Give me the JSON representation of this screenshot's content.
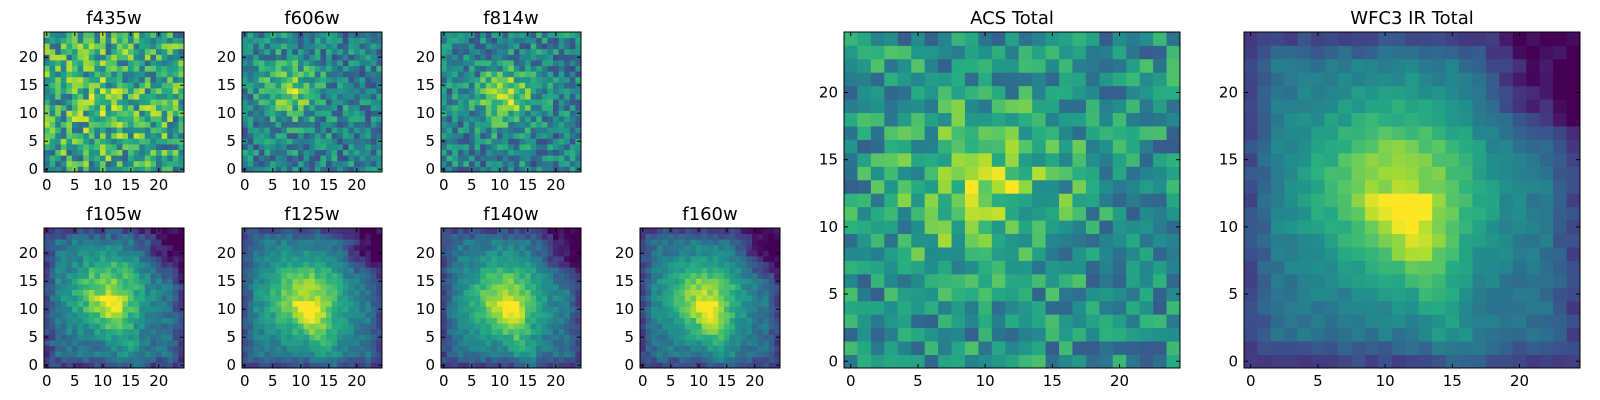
{
  "chart_data": [
    {
      "type": "heatmap",
      "title": "f435w",
      "grid_size": 25,
      "colormap": "viridis",
      "xticks": [
        "0",
        "5",
        "10",
        "15",
        "20"
      ],
      "yticks": [
        "0",
        "5",
        "10",
        "15",
        "20"
      ],
      "xlim": [
        -0.5,
        24.5
      ],
      "ylim": [
        -0.5,
        24.5
      ],
      "seed": 11,
      "peak": [
        11,
        12
      ],
      "spread": 6,
      "signal": 0.12,
      "base": 0.58,
      "noise": 0.3,
      "offset": [
        0,
        0
      ]
    },
    {
      "type": "heatmap",
      "title": "f606w",
      "grid_size": 25,
      "colormap": "viridis",
      "xticks": [
        "0",
        "5",
        "10",
        "15",
        "20"
      ],
      "yticks": [
        "0",
        "5",
        "10",
        "15",
        "20"
      ],
      "xlim": [
        -0.5,
        24.5
      ],
      "ylim": [
        -0.5,
        24.5
      ],
      "seed": 23,
      "peak": [
        8,
        14
      ],
      "spread": 3.5,
      "signal": 0.38,
      "base": 0.44,
      "noise": 0.22,
      "offset": [
        0,
        0
      ]
    },
    {
      "type": "heatmap",
      "title": "f814w",
      "grid_size": 25,
      "colormap": "viridis",
      "xticks": [
        "0",
        "5",
        "10",
        "15",
        "20"
      ],
      "yticks": [
        "0",
        "5",
        "10",
        "15",
        "20"
      ],
      "xlim": [
        -0.5,
        24.5
      ],
      "ylim": [
        -0.5,
        24.5
      ],
      "seed": 37,
      "peak": [
        11,
        13
      ],
      "spread": 3.5,
      "signal": 0.4,
      "base": 0.44,
      "noise": 0.22,
      "offset": [
        0,
        0
      ]
    },
    {
      "type": "heatmap",
      "title": "f105w",
      "grid_size": 25,
      "colormap": "viridis",
      "xticks": [
        "0",
        "5",
        "10",
        "15",
        "20"
      ],
      "yticks": [
        "0",
        "5",
        "10",
        "15",
        "20"
      ],
      "xlim": [
        -0.5,
        24.5
      ],
      "ylim": [
        -0.5,
        24.5
      ],
      "seed": 41,
      "peak": [
        11,
        13
      ],
      "spread": 5,
      "signal": 0.48,
      "base": 0.35,
      "noise": 0.1,
      "offset": [
        1,
        1
      ]
    },
    {
      "type": "heatmap",
      "title": "f125w",
      "grid_size": 25,
      "colormap": "viridis",
      "xticks": [
        "0",
        "5",
        "10",
        "15",
        "20"
      ],
      "yticks": [
        "0",
        "5",
        "10",
        "15",
        "20"
      ],
      "xlim": [
        -0.5,
        24.5
      ],
      "ylim": [
        -0.5,
        24.5
      ],
      "seed": 53,
      "peak": [
        11,
        12
      ],
      "spread": 5,
      "signal": 0.5,
      "base": 0.38,
      "noise": 0.08,
      "offset": [
        1,
        2
      ]
    },
    {
      "type": "heatmap",
      "title": "f140w",
      "grid_size": 25,
      "colormap": "viridis",
      "xticks": [
        "0",
        "5",
        "10",
        "15",
        "20"
      ],
      "yticks": [
        "0",
        "5",
        "10",
        "15",
        "20"
      ],
      "xlim": [
        -0.5,
        24.5
      ],
      "ylim": [
        -0.5,
        24.5
      ],
      "seed": 67,
      "peak": [
        11,
        12
      ],
      "spread": 5,
      "signal": 0.5,
      "base": 0.36,
      "noise": 0.08,
      "offset": [
        2,
        2
      ]
    },
    {
      "type": "heatmap",
      "title": "f160w",
      "grid_size": 25,
      "colormap": "viridis",
      "xticks": [
        "0",
        "5",
        "10",
        "15",
        "20"
      ],
      "yticks": [
        "0",
        "5",
        "10",
        "15",
        "20"
      ],
      "xlim": [
        -0.5,
        24.5
      ],
      "ylim": [
        -0.5,
        24.5
      ],
      "seed": 71,
      "peak": [
        11,
        12
      ],
      "spread": 5,
      "signal": 0.52,
      "base": 0.35,
      "noise": 0.08,
      "offset": [
        2,
        2
      ]
    },
    {
      "type": "heatmap",
      "title": "ACS Total",
      "grid_size": 25,
      "colormap": "viridis",
      "xticks": [
        "0",
        "5",
        "10",
        "15",
        "20"
      ],
      "yticks": [
        "0",
        "5",
        "10",
        "15",
        "20"
      ],
      "xlim": [
        -0.5,
        24.5
      ],
      "ylim": [
        -0.5,
        24.5
      ],
      "seed": 83,
      "peak": [
        10,
        13
      ],
      "spread": 4,
      "signal": 0.34,
      "base": 0.5,
      "noise": 0.22,
      "offset": [
        0,
        0
      ]
    },
    {
      "type": "heatmap",
      "title": "WFC3 IR Total",
      "grid_size": 25,
      "colormap": "viridis",
      "xticks": [
        "0",
        "5",
        "10",
        "15",
        "20"
      ],
      "yticks": [
        "0",
        "5",
        "10",
        "15",
        "20"
      ],
      "xlim": [
        -0.5,
        24.5
      ],
      "ylim": [
        -0.5,
        24.5
      ],
      "seed": 97,
      "peak": [
        11,
        13
      ],
      "spread": 5,
      "signal": 0.5,
      "base": 0.36,
      "noise": 0.05,
      "offset": [
        2,
        2
      ]
    }
  ]
}
